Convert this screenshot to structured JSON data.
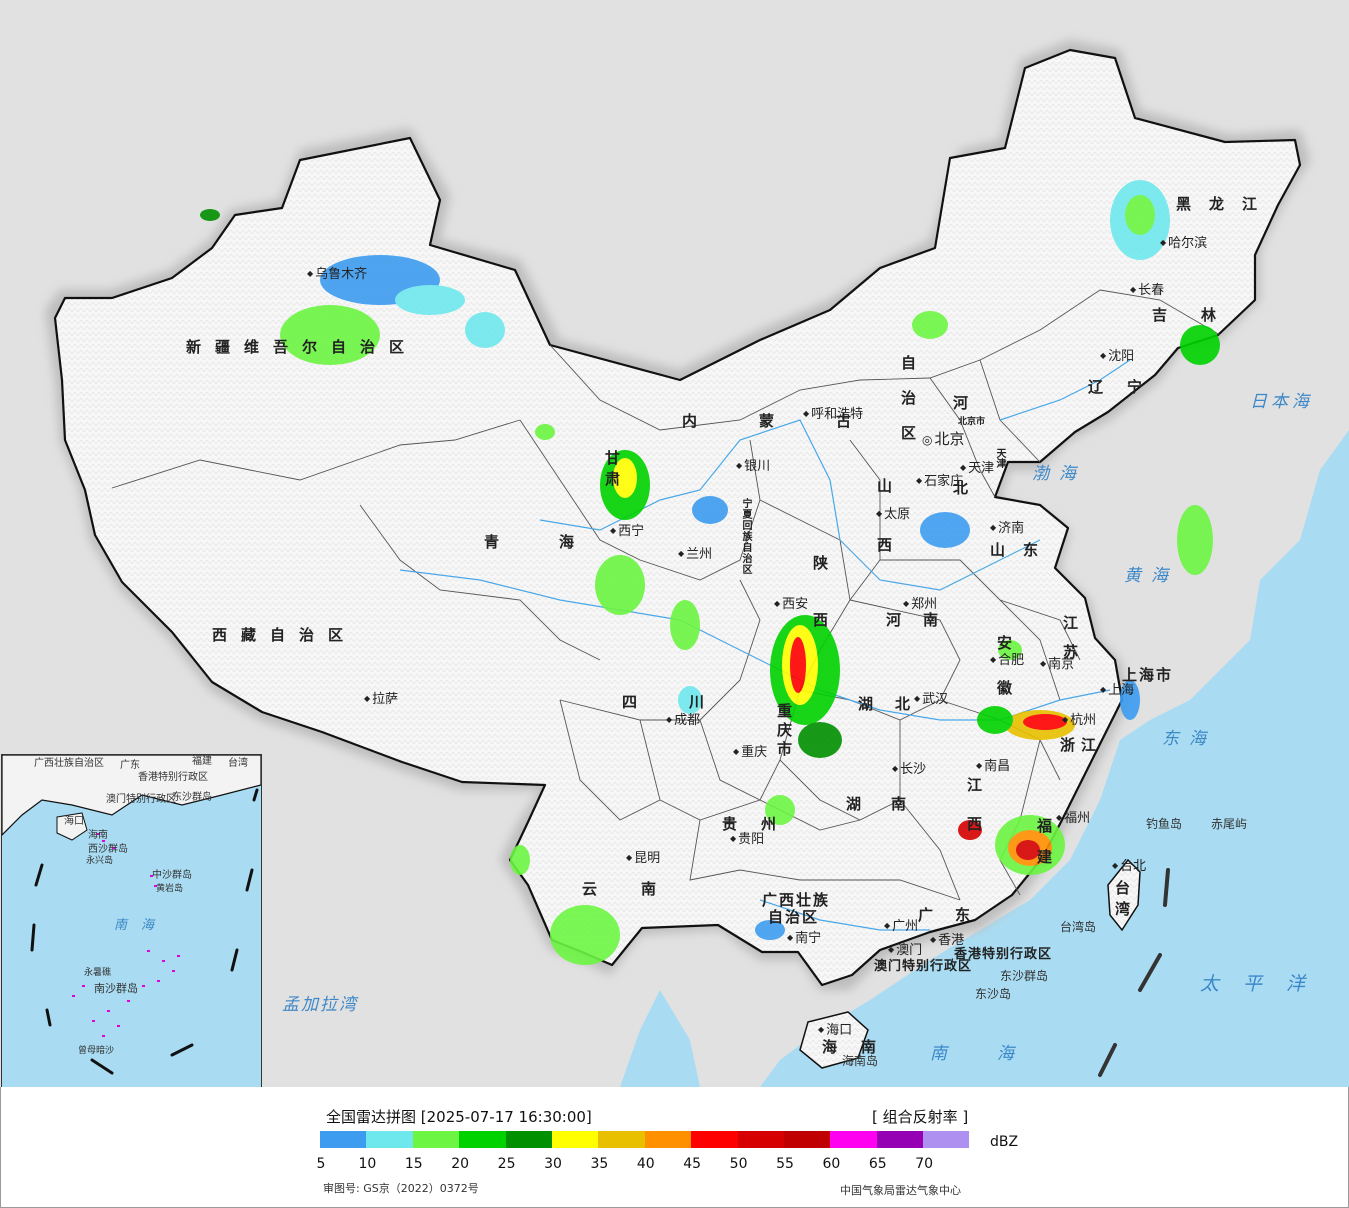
{
  "map": {
    "capital": "北京",
    "provinces": [
      {
        "id": "xinjiang",
        "text": "新疆维吾尔自治区"
      },
      {
        "id": "xizang",
        "text": "西藏自治区"
      },
      {
        "id": "qinghai",
        "text": "青海"
      },
      {
        "id": "gansu",
        "text": "甘肃"
      },
      {
        "id": "neimenggu-1",
        "text": "内蒙古"
      },
      {
        "id": "neimenggu-2",
        "text": "自治区"
      },
      {
        "id": "heilongjiang",
        "text": "黑龙江"
      },
      {
        "id": "jilin",
        "text": "吉林"
      },
      {
        "id": "liaoning",
        "text": "辽宁"
      },
      {
        "id": "hebei",
        "text": "河北"
      },
      {
        "id": "shanxi",
        "text": "山西"
      },
      {
        "id": "shaanxi",
        "text": "陕西"
      },
      {
        "id": "ningxia",
        "text": "宁夏回族自治区"
      },
      {
        "id": "shandong",
        "text": "山东"
      },
      {
        "id": "henan",
        "text": "河南"
      },
      {
        "id": "jiangsu",
        "text": "江苏"
      },
      {
        "id": "anhui",
        "text": "安徽"
      },
      {
        "id": "hubei",
        "text": "湖北"
      },
      {
        "id": "sichuan",
        "text": "四川"
      },
      {
        "id": "chongqing",
        "text": "重庆市"
      },
      {
        "id": "zhejiang",
        "text": "浙江"
      },
      {
        "id": "jiangxi",
        "text": "江西"
      },
      {
        "id": "hunan",
        "text": "湖南"
      },
      {
        "id": "guizhou",
        "text": "贵州"
      },
      {
        "id": "yunnan",
        "text": "云南"
      },
      {
        "id": "fujian",
        "text": "福建"
      },
      {
        "id": "guangxi-1",
        "text": "广西壮族"
      },
      {
        "id": "guangxi-2",
        "text": "自治区"
      },
      {
        "id": "guangdong",
        "text": "广东"
      },
      {
        "id": "hainan",
        "text": "海南"
      },
      {
        "id": "taiwan",
        "text": "台湾"
      },
      {
        "id": "shanghai",
        "text": "上海市"
      },
      {
        "id": "beijing-shi",
        "text": "北京市"
      },
      {
        "id": "tianjin-shi",
        "text": "天津"
      },
      {
        "id": "hk",
        "text": "香港特别行政区"
      },
      {
        "id": "macau",
        "text": "澳门特别行政区"
      }
    ],
    "cities": [
      {
        "id": "urumqi",
        "text": "乌鲁木齐"
      },
      {
        "id": "lhasa",
        "text": "拉萨"
      },
      {
        "id": "xining",
        "text": "西宁"
      },
      {
        "id": "lanzhou",
        "text": "兰州"
      },
      {
        "id": "yinchuan",
        "text": "银川"
      },
      {
        "id": "hohhot",
        "text": "呼和浩特"
      },
      {
        "id": "harbin",
        "text": "哈尔滨"
      },
      {
        "id": "changchun",
        "text": "长春"
      },
      {
        "id": "shenyang",
        "text": "沈阳"
      },
      {
        "id": "tianjin",
        "text": "天津"
      },
      {
        "id": "shijiazhuang",
        "text": "石家庄"
      },
      {
        "id": "taiyuan",
        "text": "太原"
      },
      {
        "id": "jinan",
        "text": "济南"
      },
      {
        "id": "zhengzhou",
        "text": "郑州"
      },
      {
        "id": "xian",
        "text": "西安"
      },
      {
        "id": "nanjing",
        "text": "南京"
      },
      {
        "id": "hefei",
        "text": "合肥"
      },
      {
        "id": "shanghai-city",
        "text": "上海"
      },
      {
        "id": "hangzhou",
        "text": "杭州"
      },
      {
        "id": "wuhan",
        "text": "武汉"
      },
      {
        "id": "chengdu",
        "text": "成都"
      },
      {
        "id": "chongqing-city",
        "text": "重庆"
      },
      {
        "id": "changsha",
        "text": "长沙"
      },
      {
        "id": "nanchang",
        "text": "南昌"
      },
      {
        "id": "guiyang",
        "text": "贵阳"
      },
      {
        "id": "kunming",
        "text": "昆明"
      },
      {
        "id": "fuzhou",
        "text": "福州"
      },
      {
        "id": "taibei",
        "text": "台北"
      },
      {
        "id": "nanning",
        "text": "南宁"
      },
      {
        "id": "guangzhou",
        "text": "广州"
      },
      {
        "id": "aomen",
        "text": "澳门"
      },
      {
        "id": "xianggang",
        "text": "香港"
      },
      {
        "id": "haikou",
        "text": "海口"
      }
    ],
    "seas": [
      {
        "id": "bohai",
        "text": "渤海"
      },
      {
        "id": "huanghai",
        "text": "黄海"
      },
      {
        "id": "donghai",
        "text": "东海"
      },
      {
        "id": "nanhai",
        "text": "南海"
      },
      {
        "id": "ribenhai",
        "text": "日本海"
      },
      {
        "id": "taipingyang",
        "text": "太平洋"
      },
      {
        "id": "mengjiala",
        "text": "孟加拉湾"
      }
    ],
    "islands": [
      {
        "id": "diaoyu",
        "text": "钓鱼岛"
      },
      {
        "id": "chiwei",
        "text": "赤尾屿"
      },
      {
        "id": "taiwandao",
        "text": "台湾岛"
      },
      {
        "id": "dongsha-1",
        "text": "东沙群岛"
      },
      {
        "id": "dongsha-2",
        "text": "东沙岛"
      },
      {
        "id": "hainandao",
        "text": "海南岛"
      }
    ],
    "inset": {
      "labels": [
        {
          "id": "in-guangxi",
          "text": "广西壮族自治区"
        },
        {
          "id": "in-guangdong",
          "text": "广东"
        },
        {
          "id": "in-fujian",
          "text": "福建"
        },
        {
          "id": "in-taiwan",
          "text": "台湾"
        },
        {
          "id": "in-hk",
          "text": "香港特别行政区"
        },
        {
          "id": "in-macau",
          "text": "澳门特别行政区"
        },
        {
          "id": "in-dongsha",
          "text": "东沙群岛"
        },
        {
          "id": "in-haikou",
          "text": "海口"
        },
        {
          "id": "in-hainan",
          "text": "海南"
        },
        {
          "id": "in-xisha",
          "text": "西沙群岛"
        },
        {
          "id": "in-yongxing",
          "text": "永兴岛"
        },
        {
          "id": "in-zhongsha",
          "text": "中沙群岛"
        },
        {
          "id": "in-huangyan",
          "text": "黄岩岛"
        },
        {
          "id": "in-nanhai",
          "text": "南海"
        },
        {
          "id": "in-yongshu",
          "text": "永暑礁"
        },
        {
          "id": "in-nansha",
          "text": "南沙群岛"
        },
        {
          "id": "in-zengmu",
          "text": "曾母暗沙"
        }
      ]
    }
  },
  "legend": {
    "title": "全国雷达拼图 [2025-07-17 16:30:00]",
    "product": "[ 组合反射率 ]",
    "unit": "dBZ",
    "colors": [
      "#3d9cf0",
      "#6ee8ec",
      "#6cf542",
      "#00d200",
      "#009000",
      "#ffff00",
      "#e8c000",
      "#ff9000",
      "#ff0000",
      "#d60000",
      "#c00000",
      "#ff00f0",
      "#9600b4",
      "#ad90f0"
    ],
    "ticks": [
      "5",
      "10",
      "15",
      "20",
      "25",
      "30",
      "35",
      "40",
      "45",
      "50",
      "55",
      "60",
      "65",
      "70"
    ],
    "review_no": "审图号: GS京（2022）0372号",
    "source": "中国气象局雷达气象中心"
  },
  "theme": {
    "sea": "#a9dcf2",
    "land": "#e1e1e1",
    "china": "#f6f6f6",
    "border": "#111111"
  }
}
